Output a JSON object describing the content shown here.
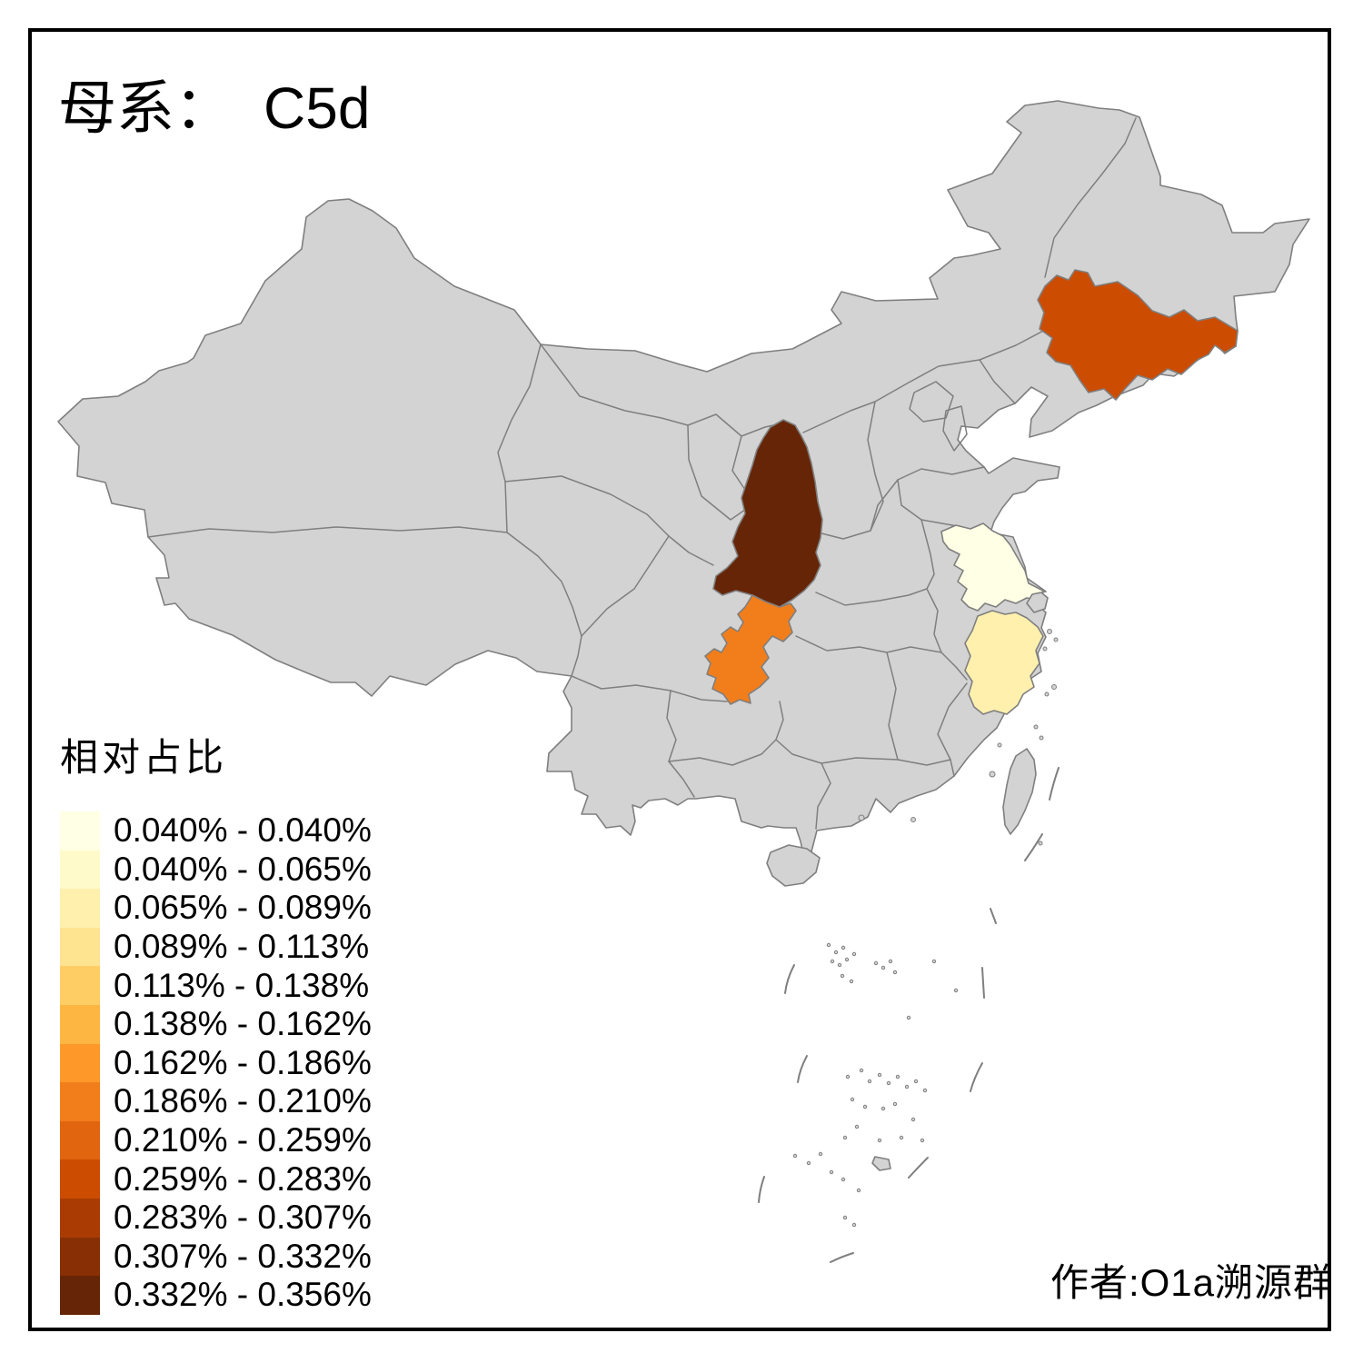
{
  "title": {
    "prefix": "母系：",
    "value": "C5d"
  },
  "legend": {
    "title": "相对占比",
    "items": [
      {
        "label": "0.040% - 0.040%",
        "color": "#FFFFE5"
      },
      {
        "label": "0.040% - 0.065%",
        "color": "#FFFACA"
      },
      {
        "label": "0.065% - 0.089%",
        "color": "#FFF0AE"
      },
      {
        "label": "0.089% - 0.113%",
        "color": "#FEE391"
      },
      {
        "label": "0.113% - 0.138%",
        "color": "#FECE65"
      },
      {
        "label": "0.138% - 0.162%",
        "color": "#FEB642"
      },
      {
        "label": "0.162% - 0.186%",
        "color": "#FE9929"
      },
      {
        "label": "0.186% - 0.210%",
        "color": "#F27E1B"
      },
      {
        "label": "0.210% - 0.259%",
        "color": "#E1640E"
      },
      {
        "label": "0.259% - 0.283%",
        "color": "#CC4C02"
      },
      {
        "label": "0.283% - 0.307%",
        "color": "#AA3C03"
      },
      {
        "label": "0.307% - 0.332%",
        "color": "#882F05"
      },
      {
        "label": "0.332% - 0.356%",
        "color": "#662506"
      }
    ]
  },
  "author": "作者:O1a溯源群",
  "map": {
    "land_color": "#D3D3D3",
    "border_color": "#7F7F7F",
    "sea_color": "#FFFFFF",
    "frame_color": "#000000"
  },
  "chart_data": {
    "type": "choropleth-map",
    "title": "母系： C5d",
    "legend_title": "相对占比",
    "unit": "percent relative proportion",
    "bins": [
      "0.040-0.040",
      "0.040-0.065",
      "0.065-0.089",
      "0.089-0.113",
      "0.113-0.138",
      "0.138-0.162",
      "0.162-0.186",
      "0.186-0.210",
      "0.210-0.259",
      "0.259-0.283",
      "0.283-0.307",
      "0.307-0.332",
      "0.332-0.356"
    ],
    "regions": [
      {
        "name": "jiangsu",
        "legend_index": 0
      },
      {
        "name": "zhejiang",
        "legend_index": 2
      },
      {
        "name": "chongqing",
        "legend_index": 7
      },
      {
        "name": "jilin",
        "legend_index": 9
      },
      {
        "name": "shaanxi",
        "legend_index": 12
      }
    ],
    "no_data_regions": "all other provinces shown in gray"
  }
}
